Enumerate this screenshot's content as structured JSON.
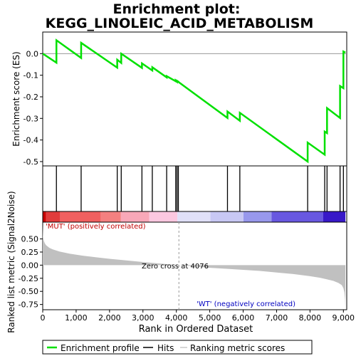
{
  "chart_data": {
    "type": "line",
    "title_line1": "Enrichment plot:",
    "title_line2": "KEGG_LINOLEIC_ACID_METABOLISM",
    "xlabel": "Rank in Ordered Dataset",
    "es_ylabel": "Enrichment score (ES)",
    "metric_ylabel": "Ranked list metric (Signal2Noise)",
    "x_ticks": [
      0,
      1000,
      2000,
      3000,
      4000,
      5000,
      6000,
      7000,
      8000,
      9000
    ],
    "x_tick_labels": [
      "0",
      "1,000",
      "2,000",
      "3,000",
      "4,000",
      "5,000",
      "6,000",
      "7,000",
      "8,000",
      "9,000"
    ],
    "xlim": [
      0,
      9100
    ],
    "es_ylim": [
      -0.52,
      0.1
    ],
    "es_ticks": [
      0.0,
      -0.1,
      -0.2,
      -0.3,
      -0.4,
      -0.5
    ],
    "es_tick_labels": [
      "0.0",
      "-0.1",
      "-0.2",
      "-0.3",
      "-0.4",
      "-0.5"
    ],
    "metric_ylim": [
      -0.85,
      0.82
    ],
    "metric_ticks": [
      0.5,
      0.25,
      0.0,
      -0.25,
      -0.5,
      -0.75
    ],
    "metric_tick_labels": [
      "0.50",
      "0.25",
      "0.00",
      "-0.25",
      "-0.50",
      "-0.75"
    ],
    "hits": [
      410,
      1150,
      2230,
      2350,
      2970,
      3280,
      3710,
      3980,
      4020,
      4060,
      5530,
      5900,
      7930,
      8440,
      8510,
      8900,
      9000
    ],
    "es_profile": {
      "x": [
        0,
        410,
        410,
        1150,
        1150,
        2230,
        2230,
        2350,
        2350,
        2970,
        2970,
        3280,
        3280,
        3710,
        3710,
        3980,
        3980,
        4020,
        4020,
        4060,
        4060,
        5530,
        5530,
        5900,
        5900,
        7930,
        7930,
        8440,
        8440,
        8510,
        8510,
        8900,
        8900,
        9000,
        9000,
        9060
      ],
      "y": [
        0.0,
        -0.042,
        0.062,
        -0.02,
        0.05,
        -0.065,
        -0.028,
        -0.043,
        0.0,
        -0.066,
        -0.045,
        -0.078,
        -0.063,
        -0.11,
        -0.104,
        -0.128,
        -0.124,
        -0.13,
        -0.126,
        -0.13,
        -0.131,
        -0.298,
        -0.268,
        -0.311,
        -0.274,
        -0.5,
        -0.412,
        -0.468,
        -0.361,
        -0.368,
        -0.252,
        -0.298,
        -0.15,
        -0.16,
        0.01,
        0.005
      ]
    },
    "metric_curve": {
      "x": [
        0,
        10,
        30,
        60,
        100,
        200,
        300,
        500,
        800,
        1200,
        1600,
        2000,
        2500,
        3000,
        3500,
        4076,
        4500,
        5000,
        5500,
        6000,
        6500,
        7000,
        7500,
        8000,
        8300,
        8500,
        8700,
        8850,
        8950,
        9000,
        9030,
        9050,
        9060
      ],
      "y": [
        0.78,
        0.55,
        0.47,
        0.42,
        0.38,
        0.33,
        0.3,
        0.26,
        0.22,
        0.18,
        0.15,
        0.12,
        0.09,
        0.06,
        0.03,
        0.0,
        -0.02,
        -0.05,
        -0.07,
        -0.09,
        -0.11,
        -0.14,
        -0.17,
        -0.21,
        -0.24,
        -0.27,
        -0.3,
        -0.34,
        -0.38,
        -0.44,
        -0.52,
        -0.65,
        -0.85
      ]
    },
    "zero_cross_rank": 4076,
    "zero_cross_text": "Zero cross at 4076",
    "pos_label": "'MUT' (positively correlated)",
    "neg_label": "'WT' (negatively correlated)",
    "heatmap_colors": [
      "#c80000",
      "#e03c3c",
      "#f06060",
      "#f48080",
      "#f8a8b8",
      "#fcc8e0",
      "#e0e0f8",
      "#c8c8f4",
      "#9898ec",
      "#6858e0",
      "#3818c8"
    ],
    "heatmap_bounds": [
      0,
      100,
      520,
      1740,
      2340,
      3190,
      4030,
      5020,
      6010,
      6850,
      8390,
      9060
    ],
    "legend": [
      {
        "label": "Enrichment profile",
        "color": "#00e000"
      },
      {
        "label": "Hits",
        "color": "#000000"
      },
      {
        "label": "Ranking metric scores",
        "color": "#c8c8c8"
      }
    ],
    "colors": {
      "es_line": "#00e000",
      "metric_fill": "#c0c0c0",
      "hit_line": "#000000",
      "pos_text": "#c00000",
      "neg_text": "#0000c0"
    }
  }
}
